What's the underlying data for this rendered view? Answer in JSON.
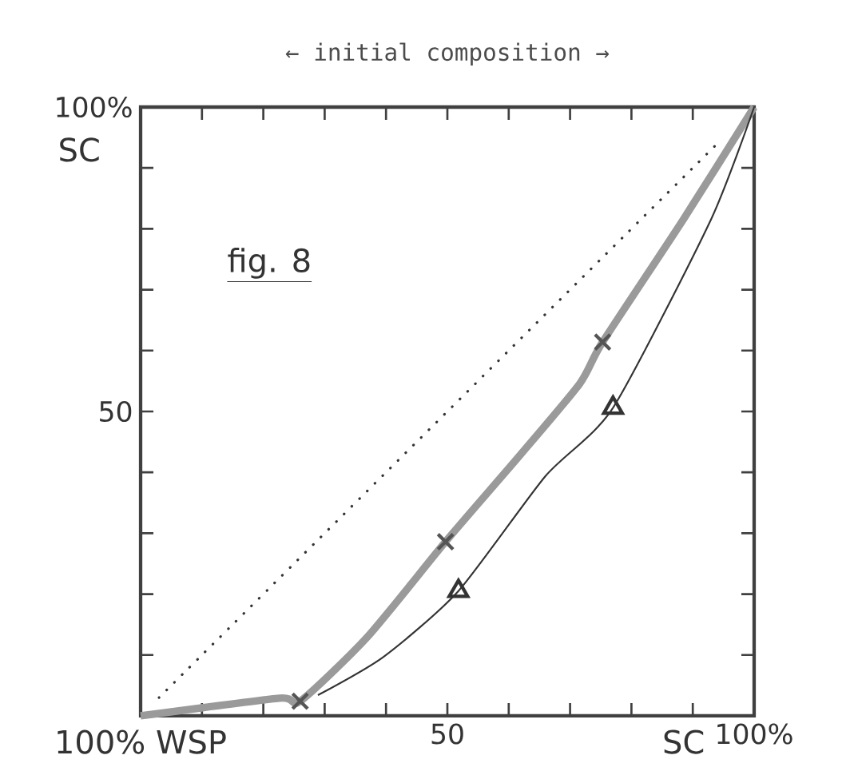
{
  "chart_data": {
    "type": "line",
    "title": "← initial composition →",
    "xlabel": "SC",
    "ylabel": "SC",
    "annotations": [
      "fig. 8",
      "100% WSP"
    ],
    "xlim": [
      0,
      100
    ],
    "ylim": [
      0,
      100
    ],
    "xticks": [
      {
        "value": 0,
        "label": null
      },
      {
        "value": 10,
        "label": null
      },
      {
        "value": 20,
        "label": null
      },
      {
        "value": 30,
        "label": null
      },
      {
        "value": 40,
        "label": null
      },
      50,
      {
        "value": 60,
        "label": null
      },
      {
        "value": 70,
        "label": null
      },
      {
        "value": 80,
        "label": null
      },
      {
        "value": 90,
        "label": null
      },
      {
        "value": 100,
        "label": "100%"
      }
    ],
    "yticks": [
      {
        "value": 0,
        "label": null
      },
      {
        "value": 10,
        "label": null
      },
      {
        "value": 20,
        "label": null
      },
      {
        "value": 30,
        "label": null
      },
      {
        "value": 40,
        "label": null
      },
      50,
      {
        "value": 60,
        "label": null
      },
      {
        "value": 70,
        "label": null
      },
      {
        "value": 80,
        "label": null
      },
      {
        "value": 90,
        "label": null
      },
      {
        "value": 100,
        "label": "100%"
      }
    ],
    "grid": false,
    "legend": false,
    "series": [
      {
        "color": "#9a9a9a",
        "line_style": "solid",
        "marker": "none",
        "x": [
          0,
          22.6,
          26,
          37,
          49.7,
          62,
          71.6,
          75.3,
          88.5,
          100
        ],
        "values": [
          0,
          2.9,
          2.4,
          13,
          28.6,
          43,
          54.6,
          61.4,
          81.6,
          100
        ]
      },
      {
        "type": "scatter",
        "color": "#555555",
        "marker": "cross",
        "x": [
          26,
          49.7,
          75.3
        ],
        "values": [
          2.4,
          28.6,
          61.4
        ]
      },
      {
        "color": "#333333",
        "line_style": "solid",
        "marker": "none",
        "x": [
          28.9,
          39.6,
          51.8,
          66,
          77,
          93,
          100
        ],
        "values": [
          3.4,
          9.7,
          20.5,
          39.4,
          50.6,
          81.6,
          100
        ]
      },
      {
        "type": "scatter",
        "color": "#333333",
        "marker": "triangle",
        "x": [
          51.8,
          77
        ],
        "values": [
          20.5,
          50.6
        ]
      },
      {
        "color": "#333333",
        "line_style": "dotted",
        "marker": "none",
        "x": [
          3,
          94
        ],
        "values": [
          3,
          94
        ]
      }
    ]
  }
}
